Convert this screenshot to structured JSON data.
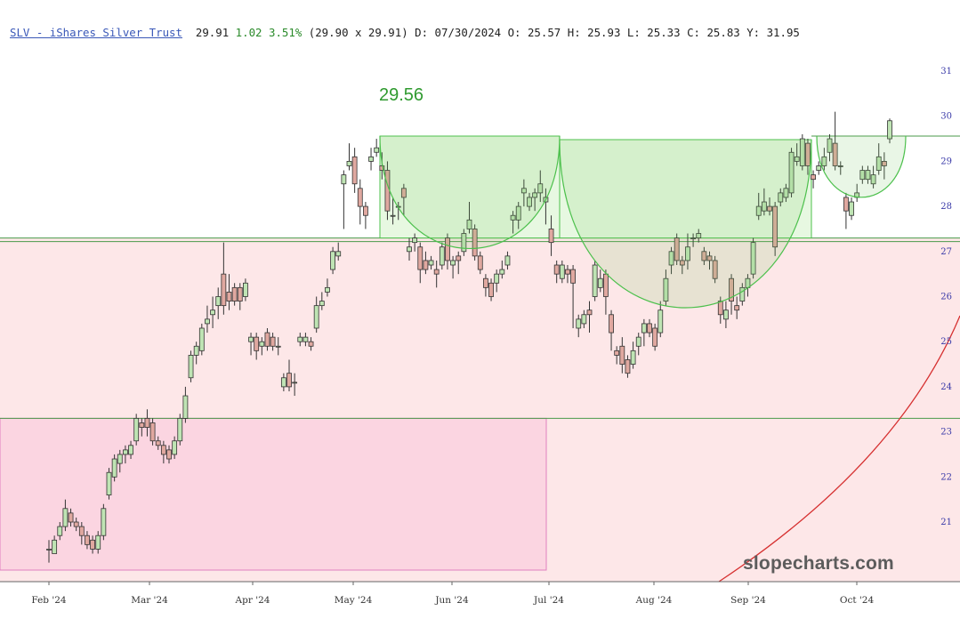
{
  "quote": {
    "symbol_label": "SLV - iShares Silver Trust",
    "last": "29.91",
    "change": "1.02",
    "change_pct": "3.51%",
    "bid_ask": "(29.90 x 29.91)",
    "date": "D: 07/30/2024",
    "open": "O: 25.57",
    "high": "H: 25.93",
    "low": "L: 25.33",
    "close": "C: 25.83",
    "y": "Y: 31.95"
  },
  "watermark": "slopecharts.com",
  "annotation_label": "29.56",
  "colors": {
    "up_candle": "#bfe4b4",
    "down_candle": "#e0a8a0",
    "candle_outline": "#333333",
    "resistance_band": "#e7f8e1",
    "support_band": "#fde7e8",
    "lower_box": "#fbd5e1",
    "cup_line": "#4cc04c",
    "arc_line": "#d63030",
    "axis_text": "#3a3aa8"
  },
  "chart_data": {
    "type": "candlestick",
    "x_ticks": [
      "Feb '24",
      "Mar '24",
      "Apr '24",
      "May '24",
      "Jun '24",
      "Jul '24",
      "Aug '24",
      "Sep '24",
      "Oct '24"
    ],
    "y_ticks": [
      21,
      22,
      23,
      24,
      25,
      26,
      27,
      28,
      29,
      30,
      31
    ],
    "ylim": [
      20.2,
      31.1
    ],
    "levels": {
      "resistance": 29.56,
      "support_top": 27.3,
      "support_bottom": 23.3
    },
    "candles": [
      [
        20.4,
        20.4,
        20.1,
        20.6
      ],
      [
        20.3,
        20.6,
        20.3,
        20.7
      ],
      [
        20.7,
        20.9,
        20.6,
        21.0
      ],
      [
        20.9,
        21.3,
        20.8,
        21.5
      ],
      [
        21.2,
        21.0,
        20.9,
        21.3
      ],
      [
        21.0,
        20.9,
        20.8,
        21.1
      ],
      [
        20.9,
        20.7,
        20.5,
        21.0
      ],
      [
        20.7,
        20.5,
        20.4,
        20.8
      ],
      [
        20.6,
        20.4,
        20.3,
        20.7
      ],
      [
        20.4,
        20.7,
        20.3,
        20.8
      ],
      [
        20.7,
        21.3,
        20.6,
        21.4
      ],
      [
        21.6,
        22.1,
        21.5,
        22.2
      ],
      [
        22.0,
        22.4,
        21.9,
        22.5
      ],
      [
        22.3,
        22.5,
        22.1,
        22.6
      ],
      [
        22.5,
        22.6,
        22.3,
        22.7
      ],
      [
        22.5,
        22.7,
        22.4,
        22.8
      ],
      [
        22.8,
        23.3,
        22.7,
        23.4
      ],
      [
        23.2,
        23.1,
        22.9,
        23.3
      ],
      [
        23.3,
        23.1,
        22.9,
        23.5
      ],
      [
        23.2,
        22.8,
        22.7,
        23.3
      ],
      [
        22.8,
        22.7,
        22.6,
        22.9
      ],
      [
        22.7,
        22.5,
        22.3,
        22.8
      ],
      [
        22.6,
        22.4,
        22.3,
        22.7
      ],
      [
        22.5,
        22.8,
        22.4,
        22.9
      ],
      [
        22.8,
        23.3,
        22.7,
        23.4
      ],
      [
        23.3,
        23.8,
        23.2,
        24.0
      ],
      [
        24.2,
        24.7,
        24.1,
        24.8
      ],
      [
        24.7,
        24.9,
        24.5,
        25.0
      ],
      [
        24.8,
        25.3,
        24.7,
        25.4
      ],
      [
        25.4,
        25.5,
        25.2,
        25.8
      ],
      [
        25.6,
        25.7,
        25.3,
        26.0
      ],
      [
        25.8,
        26.0,
        25.5,
        26.2
      ],
      [
        26.5,
        25.8,
        25.6,
        27.2
      ],
      [
        26.1,
        25.9,
        25.7,
        26.5
      ],
      [
        26.2,
        25.9,
        25.8,
        26.3
      ],
      [
        26.2,
        25.9,
        25.7,
        26.3
      ],
      [
        26.0,
        26.3,
        25.9,
        26.4
      ],
      [
        25.0,
        25.1,
        24.7,
        25.2
      ],
      [
        25.1,
        24.8,
        24.6,
        25.2
      ],
      [
        24.9,
        25.0,
        24.7,
        25.1
      ],
      [
        25.2,
        24.9,
        24.8,
        25.3
      ],
      [
        25.1,
        24.9,
        24.8,
        25.2
      ],
      [
        24.9,
        24.9,
        24.7,
        25.1
      ],
      [
        24.0,
        24.2,
        23.9,
        24.3
      ],
      [
        24.3,
        24.0,
        23.9,
        24.6
      ],
      [
        24.1,
        24.1,
        23.8,
        24.3
      ],
      [
        25.0,
        25.1,
        24.9,
        25.2
      ],
      [
        25.0,
        25.1,
        24.9,
        25.2
      ],
      [
        25.0,
        24.9,
        24.8,
        25.1
      ],
      [
        25.3,
        25.8,
        25.2,
        26.0
      ],
      [
        25.8,
        25.9,
        25.7,
        26.1
      ],
      [
        26.1,
        26.2,
        26.0,
        26.4
      ],
      [
        26.6,
        27.0,
        26.5,
        27.1
      ],
      [
        26.9,
        27.0,
        26.8,
        27.2
      ],
      [
        28.5,
        28.7,
        27.5,
        28.8
      ],
      [
        28.9,
        29.0,
        28.8,
        29.4
      ],
      [
        29.1,
        28.5,
        28.3,
        29.3
      ],
      [
        28.4,
        28.0,
        27.6,
        28.6
      ],
      [
        28.0,
        27.8,
        27.5,
        28.1
      ],
      [
        29.0,
        29.1,
        28.8,
        29.3
      ],
      [
        29.2,
        29.3,
        29.1,
        29.5
      ],
      [
        28.9,
        28.8,
        28.6,
        29.2
      ],
      [
        28.8,
        27.9,
        27.7,
        29.0
      ],
      [
        27.8,
        27.8,
        27.6,
        28.2
      ],
      [
        28.0,
        28.0,
        27.7,
        28.1
      ],
      [
        28.4,
        28.2,
        27.8,
        28.5
      ],
      [
        27.0,
        27.1,
        26.8,
        27.3
      ],
      [
        27.2,
        27.3,
        27.0,
        27.4
      ],
      [
        27.1,
        26.6,
        26.3,
        27.2
      ],
      [
        26.8,
        26.6,
        26.5,
        27.0
      ],
      [
        26.7,
        26.8,
        26.6,
        26.9
      ],
      [
        26.6,
        26.5,
        26.2,
        26.8
      ],
      [
        26.7,
        27.1,
        26.6,
        27.2
      ],
      [
        27.3,
        26.8,
        26.6,
        27.4
      ],
      [
        26.7,
        26.8,
        26.4,
        26.9
      ],
      [
        26.9,
        26.8,
        26.5,
        27.0
      ],
      [
        27.0,
        27.4,
        26.9,
        27.5
      ],
      [
        27.5,
        27.7,
        27.4,
        28.1
      ],
      [
        27.5,
        26.9,
        26.8,
        27.6
      ],
      [
        26.9,
        26.6,
        26.5,
        27.0
      ],
      [
        26.4,
        26.2,
        26.0,
        26.5
      ],
      [
        26.3,
        26.0,
        25.9,
        26.4
      ],
      [
        26.3,
        26.5,
        26.1,
        26.6
      ],
      [
        26.5,
        26.6,
        26.4,
        26.8
      ],
      [
        26.7,
        26.9,
        26.6,
        27.0
      ],
      [
        27.7,
        27.8,
        27.4,
        27.9
      ],
      [
        27.7,
        28.0,
        27.5,
        28.1
      ],
      [
        28.3,
        28.4,
        28.0,
        28.6
      ],
      [
        28.0,
        28.2,
        27.9,
        28.3
      ],
      [
        28.2,
        28.3,
        27.9,
        28.4
      ],
      [
        28.3,
        28.5,
        28.1,
        28.8
      ],
      [
        28.1,
        28.2,
        27.6,
        28.4
      ],
      [
        27.5,
        27.2,
        26.9,
        27.8
      ],
      [
        26.7,
        26.5,
        26.3,
        26.8
      ],
      [
        26.4,
        26.7,
        26.3,
        26.8
      ],
      [
        26.6,
        26.5,
        26.3,
        26.7
      ],
      [
        26.6,
        26.3,
        25.3,
        26.7
      ],
      [
        25.3,
        25.5,
        25.1,
        25.6
      ],
      [
        25.4,
        25.6,
        25.3,
        25.7
      ],
      [
        25.7,
        25.6,
        25.2,
        25.9
      ],
      [
        26.0,
        26.7,
        25.9,
        26.8
      ],
      [
        26.2,
        26.4,
        26.1,
        26.6
      ],
      [
        26.5,
        26.0,
        25.6,
        26.6
      ],
      [
        25.6,
        25.2,
        24.8,
        25.7
      ],
      [
        24.8,
        24.7,
        24.5,
        24.9
      ],
      [
        24.9,
        24.5,
        24.3,
        25.1
      ],
      [
        24.6,
        24.3,
        24.2,
        24.7
      ],
      [
        24.5,
        24.8,
        24.4,
        25.0
      ],
      [
        24.9,
        25.1,
        24.7,
        25.2
      ],
      [
        25.2,
        25.4,
        24.9,
        25.5
      ],
      [
        25.4,
        25.2,
        25.1,
        25.5
      ],
      [
        25.3,
        24.9,
        24.8,
        25.4
      ],
      [
        25.2,
        25.7,
        25.1,
        25.9
      ],
      [
        25.9,
        26.4,
        25.8,
        26.6
      ],
      [
        26.7,
        27.0,
        26.5,
        27.1
      ],
      [
        27.3,
        26.8,
        26.7,
        27.4
      ],
      [
        26.8,
        26.7,
        26.5,
        26.9
      ],
      [
        26.8,
        27.1,
        26.6,
        27.4
      ],
      [
        27.3,
        27.3,
        27.1,
        27.4
      ],
      [
        27.3,
        27.4,
        27.2,
        27.5
      ],
      [
        27.0,
        26.8,
        26.7,
        27.1
      ],
      [
        26.9,
        26.8,
        26.6,
        27.0
      ],
      [
        26.8,
        26.4,
        26.3,
        26.9
      ],
      [
        25.9,
        25.6,
        25.4,
        26.0
      ],
      [
        25.5,
        25.7,
        25.3,
        25.9
      ],
      [
        26.4,
        25.9,
        25.6,
        26.5
      ],
      [
        25.8,
        25.7,
        25.5,
        26.0
      ],
      [
        25.9,
        26.2,
        25.8,
        26.3
      ],
      [
        26.2,
        26.4,
        26.0,
        26.5
      ],
      [
        26.5,
        27.2,
        26.4,
        27.3
      ],
      [
        27.8,
        28.0,
        27.7,
        28.3
      ],
      [
        27.9,
        28.1,
        27.8,
        28.4
      ],
      [
        28.0,
        27.9,
        27.8,
        28.2
      ],
      [
        28.0,
        27.1,
        26.9,
        28.1
      ],
      [
        28.1,
        28.3,
        28.0,
        28.4
      ],
      [
        28.2,
        28.4,
        28.1,
        28.5
      ],
      [
        28.3,
        29.2,
        28.2,
        29.3
      ],
      [
        29.0,
        29.1,
        28.9,
        29.4
      ],
      [
        28.9,
        29.5,
        28.8,
        29.6
      ],
      [
        29.4,
        28.9,
        28.7,
        29.5
      ],
      [
        28.7,
        28.6,
        28.4,
        28.8
      ],
      [
        28.8,
        28.9,
        28.7,
        29.0
      ],
      [
        28.9,
        29.1,
        28.8,
        29.3
      ],
      [
        29.2,
        29.5,
        29.0,
        29.6
      ],
      [
        29.4,
        28.9,
        28.8,
        30.1
      ],
      [
        28.9,
        28.9,
        28.7,
        29.0
      ],
      [
        28.2,
        27.9,
        27.5,
        28.3
      ],
      [
        27.8,
        28.1,
        27.7,
        28.2
      ],
      [
        28.2,
        28.3,
        28.1,
        28.5
      ],
      [
        28.6,
        28.8,
        28.5,
        28.9
      ],
      [
        28.6,
        28.8,
        28.5,
        28.9
      ],
      [
        28.5,
        28.7,
        28.4,
        28.9
      ],
      [
        28.8,
        29.1,
        28.7,
        29.4
      ],
      [
        29.0,
        28.9,
        28.6,
        29.2
      ],
      [
        29.5,
        29.9,
        29.4,
        29.95
      ]
    ]
  }
}
